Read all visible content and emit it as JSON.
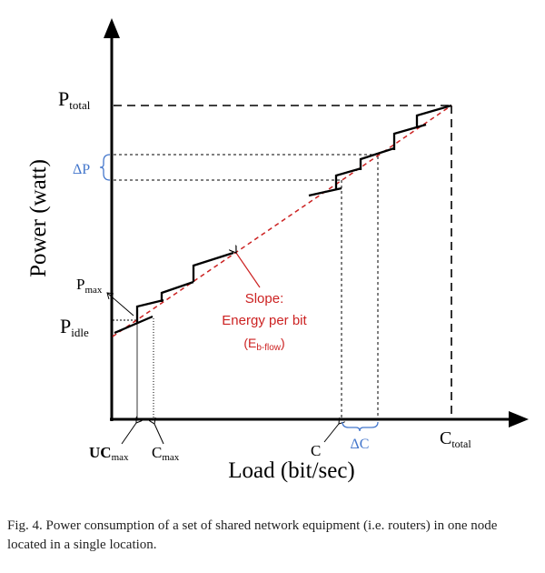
{
  "diagram": {
    "y_axis_title": "Power (watt)",
    "x_axis_title": "Load (bit/sec)",
    "labels": {
      "p_total": {
        "main": "P",
        "sub": "total"
      },
      "p_max": {
        "main": "P",
        "sub": "max"
      },
      "p_idle": {
        "main": "P",
        "sub": "idle"
      },
      "delta_p": "ΔP",
      "c_total": {
        "main": "C",
        "sub": "total"
      },
      "uc_max": {
        "main": "UC",
        "sub": "max"
      },
      "c_max": {
        "main": "C",
        "sub": "max"
      },
      "c": "C",
      "delta_c": "ΔC"
    },
    "slope_annotation": {
      "line1": "Slope:",
      "line2": "Energy per bit",
      "line3": "(E",
      "line3_sub": "b-flow",
      "line3_end": ")"
    },
    "colors": {
      "axes": "#000000",
      "trend_line": "#cc2222",
      "slope_text": "#cc2222",
      "delta_markers": "#4477cc",
      "caption_text": "#222222"
    }
  },
  "caption": "Fig. 4.  Power consumption of a set of shared network equipment (i.e. routers) in one node located in a single location."
}
